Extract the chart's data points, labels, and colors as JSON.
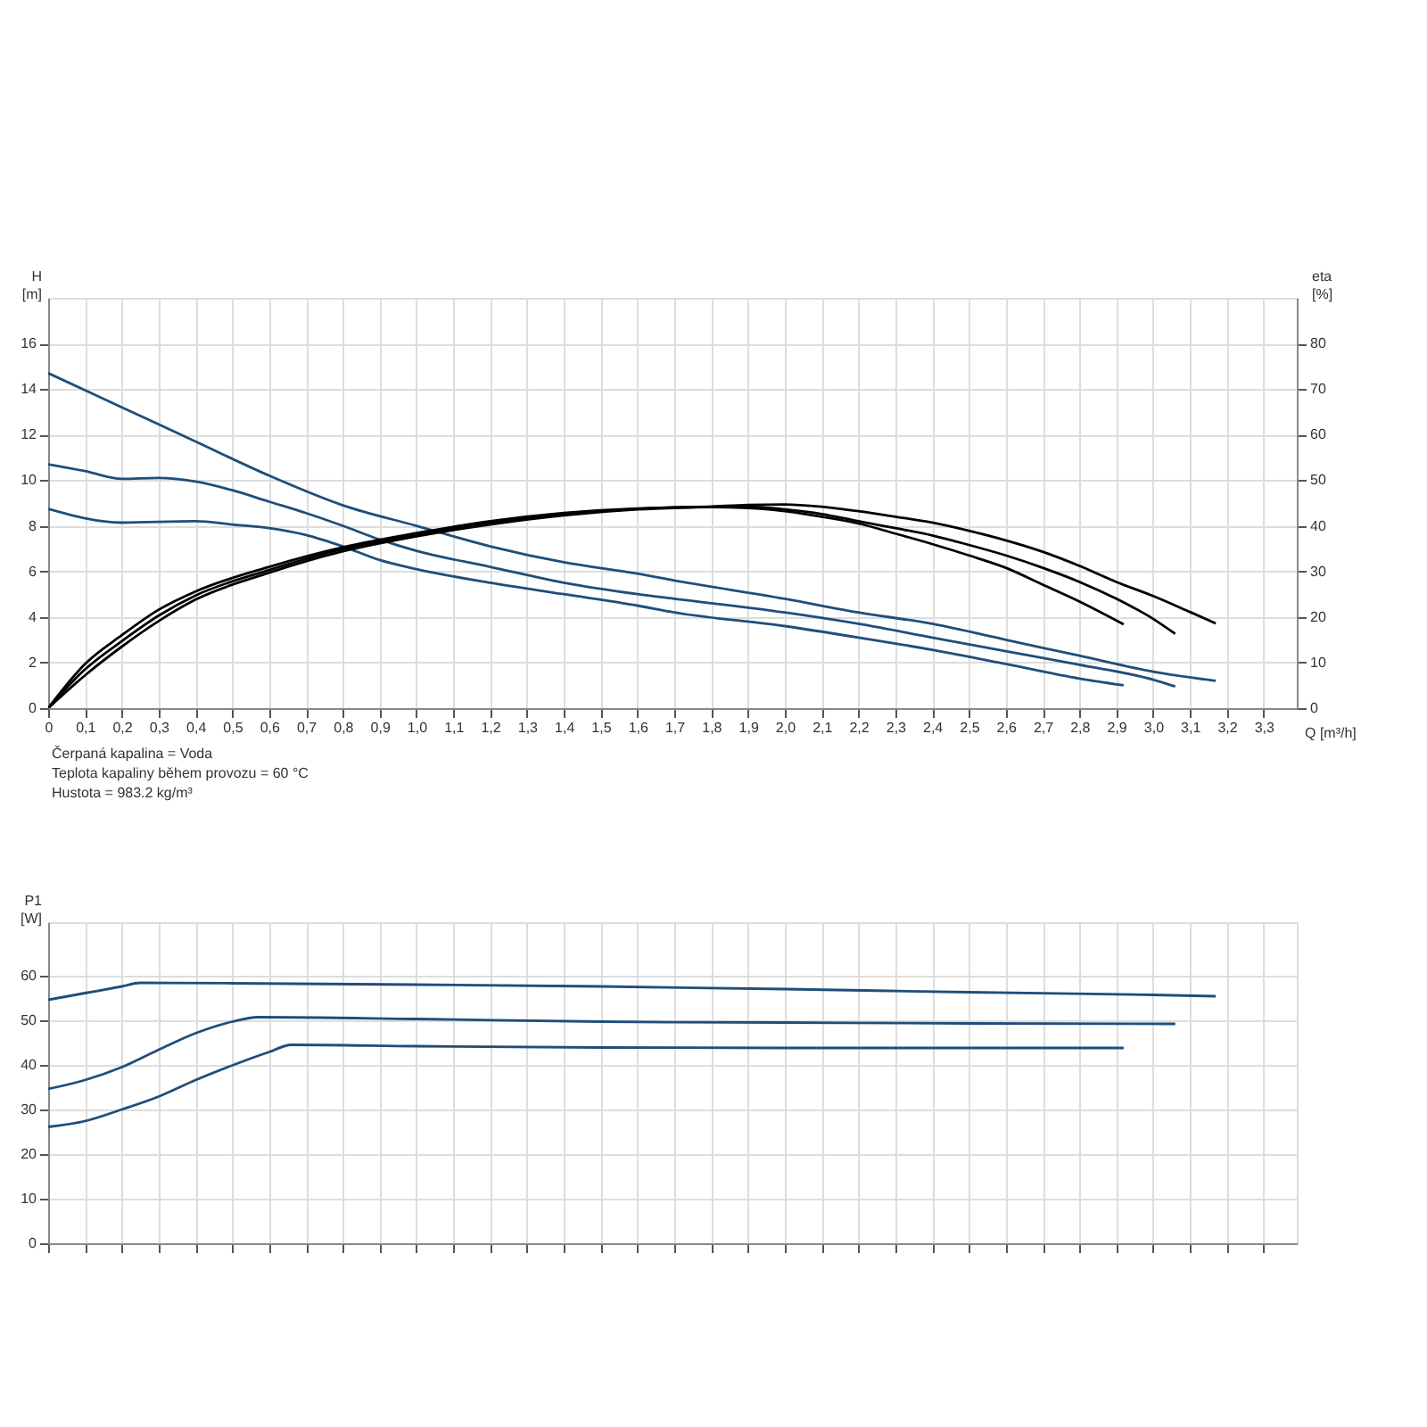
{
  "chart_data": [
    {
      "type": "line",
      "xlabel": "Q [m³/h]",
      "ylabel": "H [m]",
      "y2label": "eta [%]",
      "xlim": [
        0,
        3.39
      ],
      "xticks": [
        0,
        {
          "value": 0.1,
          "label": "0,1"
        },
        {
          "value": 0.2,
          "label": "0,2"
        },
        {
          "value": 0.3,
          "label": "0,3"
        },
        {
          "value": 0.4,
          "label": "0,4"
        },
        {
          "value": 0.5,
          "label": "0,5"
        },
        {
          "value": 0.6,
          "label": "0,6"
        },
        {
          "value": 0.7,
          "label": "0,7"
        },
        {
          "value": 0.8,
          "label": "0,8"
        },
        {
          "value": 0.9,
          "label": "0,9"
        },
        {
          "value": 1.0,
          "label": "1,0"
        },
        {
          "value": 1.1,
          "label": "1,1"
        },
        {
          "value": 1.2,
          "label": "1,2"
        },
        {
          "value": 1.3,
          "label": "1,3"
        },
        {
          "value": 1.4,
          "label": "1,4"
        },
        {
          "value": 1.5,
          "label": "1,5"
        },
        {
          "value": 1.6,
          "label": "1,6"
        },
        {
          "value": 1.7,
          "label": "1,7"
        },
        {
          "value": 1.8,
          "label": "1,8"
        },
        {
          "value": 1.9,
          "label": "1,9"
        },
        {
          "value": 2.0,
          "label": "2,0"
        },
        {
          "value": 2.1,
          "label": "2,1"
        },
        {
          "value": 2.2,
          "label": "2,2"
        },
        {
          "value": 2.3,
          "label": "2,3"
        },
        {
          "value": 2.4,
          "label": "2,4"
        },
        {
          "value": 2.5,
          "label": "2,5"
        },
        {
          "value": 2.6,
          "label": "2,6"
        },
        {
          "value": 2.7,
          "label": "2,7"
        },
        {
          "value": 2.8,
          "label": "2,8"
        },
        {
          "value": 2.9,
          "label": "2,9"
        },
        {
          "value": 3.0,
          "label": "3,0"
        },
        {
          "value": 3.1,
          "label": "3,1"
        },
        {
          "value": 3.2,
          "label": "3,2"
        },
        {
          "value": 3.3,
          "label": "3,3"
        }
      ],
      "ylim": [
        0,
        18
      ],
      "yticks": [
        0,
        2,
        4,
        6,
        8,
        10,
        12,
        14,
        16
      ],
      "y2lim": [
        0,
        90
      ],
      "y2ticks": [
        0,
        10,
        20,
        30,
        40,
        50,
        60,
        70,
        80
      ],
      "grid": true,
      "annotations": [
        "Čerpaná kapalina = Voda",
        "Teplota kapaliny během provozu = 60 °C",
        "Hustota = 983.2 kg/m³"
      ],
      "series": [
        {
          "color": "#1f4e79",
          "x": [
            0,
            0.2,
            0.4,
            0.6,
            0.8,
            1.0,
            1.2,
            1.4,
            1.6,
            1.7,
            2.0,
            2.2,
            2.4,
            2.6,
            2.8,
            3.0,
            3.17
          ],
          "values": [
            14.7,
            13.2,
            11.7,
            10.2,
            8.9,
            8.0,
            7.1,
            6.4,
            5.9,
            5.6,
            4.8,
            4.2,
            3.7,
            3.0,
            2.3,
            1.6,
            1.2
          ]
        },
        {
          "color": "#1f4e79",
          "x": [
            0,
            0.1,
            0.2,
            0.3,
            0.4,
            0.5,
            0.6,
            0.7,
            0.8,
            0.9,
            1.0,
            1.2,
            1.4,
            1.6,
            1.7,
            2.0,
            2.2,
            2.4,
            2.6,
            2.8,
            3.0,
            3.06
          ],
          "values": [
            10.7,
            10.4,
            10.06,
            10.1,
            9.94,
            9.56,
            9.06,
            8.56,
            8.0,
            7.4,
            6.9,
            6.2,
            5.5,
            5.0,
            4.8,
            4.2,
            3.7,
            3.1,
            2.5,
            1.9,
            1.25,
            0.95
          ]
        },
        {
          "color": "#1f4e79",
          "x": [
            0,
            0.2,
            0.4,
            0.5,
            0.6,
            0.7,
            0.8,
            0.9,
            1.0,
            1.2,
            1.4,
            1.6,
            1.7,
            2.0,
            2.2,
            2.4,
            2.6,
            2.8,
            2.92
          ],
          "values": [
            8.74,
            8.14,
            8.2,
            8.06,
            7.9,
            7.6,
            7.1,
            6.5,
            6.1,
            5.5,
            5.0,
            4.5,
            4.2,
            3.6,
            3.1,
            2.56,
            1.94,
            1.3,
            1.0
          ]
        },
        {
          "axis": "y2",
          "color": "#000000",
          "x": [
            0,
            0.1,
            0.2,
            0.3,
            0.4,
            0.6,
            0.8,
            1.0,
            1.2,
            1.4,
            1.6,
            1.8,
            1.9,
            2.0,
            2.1,
            2.2,
            2.3,
            2.4,
            2.5,
            2.6,
            2.7,
            2.8,
            2.92
          ],
          "values": [
            0,
            9.7,
            16,
            21.6,
            25.6,
            31,
            35.3,
            38.4,
            41,
            42.8,
            43.8,
            44.1,
            43.9,
            43.2,
            42,
            40.5,
            38.3,
            36,
            33.5,
            30.8,
            27.1,
            23.4,
            18.4
          ]
        },
        {
          "axis": "y2",
          "color": "#000000",
          "x": [
            0,
            0.1,
            0.2,
            0.3,
            0.4,
            0.6,
            0.8,
            1.0,
            1.2,
            1.4,
            1.6,
            1.8,
            1.9,
            2.0,
            2.1,
            2.2,
            2.3,
            2.4,
            2.5,
            2.6,
            2.7,
            2.8,
            2.9,
            3.0,
            3.06
          ],
          "values": [
            0,
            8.5,
            14.7,
            20.3,
            24.7,
            30.3,
            34.9,
            38.1,
            40.7,
            42.6,
            43.7,
            44.2,
            44.2,
            43.6,
            42.6,
            41,
            39.5,
            37.9,
            35.8,
            33.5,
            30.8,
            27.7,
            24,
            19.6,
            16.3
          ]
        },
        {
          "axis": "y2",
          "color": "#000000",
          "x": [
            0,
            0.1,
            0.2,
            0.3,
            0.4,
            0.6,
            0.8,
            1.0,
            1.2,
            1.4,
            1.6,
            1.8,
            1.9,
            2.0,
            2.1,
            2.2,
            2.3,
            2.4,
            2.5,
            2.6,
            2.7,
            2.8,
            2.9,
            3.0,
            3.1,
            3.17
          ],
          "values": [
            0,
            7.2,
            13.5,
            19.1,
            23.8,
            29.7,
            34.4,
            37.7,
            40.3,
            42.3,
            43.6,
            44.2,
            44.6,
            44.7,
            44.2,
            43.2,
            42,
            40.7,
            38.9,
            36.8,
            34.3,
            31.2,
            27.7,
            24.6,
            21.1,
            18.6
          ]
        }
      ]
    },
    {
      "type": "line",
      "ylabel": "P1 [W]",
      "xlim": [
        0,
        3.39
      ],
      "xticks": [
        {
          "value": 0,
          "label": null
        },
        {
          "value": 0.1,
          "label": null
        },
        {
          "value": 0.2,
          "label": null
        },
        {
          "value": 0.3,
          "label": null
        },
        {
          "value": 0.4,
          "label": null
        },
        {
          "value": 0.5,
          "label": null
        },
        {
          "value": 0.6,
          "label": null
        },
        {
          "value": 0.7,
          "label": null
        },
        {
          "value": 0.8,
          "label": null
        },
        {
          "value": 0.9,
          "label": null
        },
        {
          "value": 1.0,
          "label": null
        },
        {
          "value": 1.1,
          "label": null
        },
        {
          "value": 1.2,
          "label": null
        },
        {
          "value": 1.3,
          "label": null
        },
        {
          "value": 1.4,
          "label": null
        },
        {
          "value": 1.5,
          "label": null
        },
        {
          "value": 1.6,
          "label": null
        },
        {
          "value": 1.7,
          "label": null
        },
        {
          "value": 1.8,
          "label": null
        },
        {
          "value": 1.9,
          "label": null
        },
        {
          "value": 2.0,
          "label": null
        },
        {
          "value": 2.1,
          "label": null
        },
        {
          "value": 2.2,
          "label": null
        },
        {
          "value": 2.3,
          "label": null
        },
        {
          "value": 2.4,
          "label": null
        },
        {
          "value": 2.5,
          "label": null
        },
        {
          "value": 2.6,
          "label": null
        },
        {
          "value": 2.7,
          "label": null
        },
        {
          "value": 2.8,
          "label": null
        },
        {
          "value": 2.9,
          "label": null
        },
        {
          "value": 3.0,
          "label": null
        },
        {
          "value": 3.1,
          "label": null
        },
        {
          "value": 3.2,
          "label": null
        },
        {
          "value": 3.3,
          "label": null
        }
      ],
      "ylim": [
        0,
        72
      ],
      "yticks": [
        0,
        10,
        20,
        30,
        40,
        50,
        60
      ],
      "grid": true,
      "tick_labels": "y",
      "series": [
        {
          "color": "#1f4e79",
          "x": [
            0,
            0.1,
            0.2,
            0.25,
            0.5,
            1.0,
            1.5,
            2.0,
            2.5,
            3.0,
            3.17
          ],
          "values": [
            54.6,
            56.1,
            57.6,
            58.4,
            58.3,
            58,
            57.6,
            57,
            56.3,
            55.7,
            55.4
          ]
        },
        {
          "color": "#1f4e79",
          "x": [
            0,
            0.1,
            0.2,
            0.3,
            0.4,
            0.5,
            0.57,
            1.0,
            1.5,
            2.0,
            2.5,
            3.06
          ],
          "values": [
            34.6,
            36.6,
            39.5,
            43.4,
            47.1,
            49.7,
            50.7,
            50.3,
            49.7,
            49.5,
            49.3,
            49.2
          ]
        },
        {
          "color": "#1f4e79",
          "x": [
            0,
            0.1,
            0.2,
            0.3,
            0.4,
            0.5,
            0.6,
            0.66,
            1.0,
            1.5,
            2.0,
            2.5,
            2.92
          ],
          "values": [
            26.1,
            27.4,
            30,
            32.9,
            36.6,
            39.9,
            42.9,
            44.5,
            44.2,
            43.9,
            43.8,
            43.8,
            43.8
          ]
        }
      ]
    }
  ]
}
